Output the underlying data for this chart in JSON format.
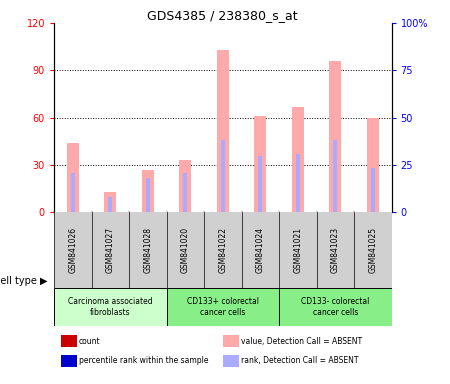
{
  "title": "GDS4385 / 238380_s_at",
  "samples": [
    "GSM841026",
    "GSM841027",
    "GSM841028",
    "GSM841020",
    "GSM841022",
    "GSM841024",
    "GSM841021",
    "GSM841023",
    "GSM841025"
  ],
  "pink_bars": [
    44,
    13,
    27,
    33,
    103,
    61,
    67,
    96,
    60
  ],
  "blue_bars": [
    25,
    10,
    22,
    25,
    46,
    36,
    37,
    46,
    28
  ],
  "ylim_left": [
    0,
    120
  ],
  "ylim_right": [
    0,
    100
  ],
  "yticks_left": [
    0,
    30,
    60,
    90,
    120
  ],
  "yticks_right": [
    0,
    25,
    50,
    75,
    100
  ],
  "ytick_labels_left": [
    "0",
    "30",
    "60",
    "90",
    "120"
  ],
  "ytick_labels_right": [
    "0",
    "25",
    "50",
    "75",
    "100%"
  ],
  "pink_color": "#ffaaaa",
  "blue_bar_color": "#aaaaff",
  "sample_area_color": "#d0d0d0",
  "plot_bg_color": "#ffffff",
  "group_configs": [
    {
      "indices": [
        0,
        1,
        2
      ],
      "color": "#ccffcc",
      "label": "Carcinoma associated\nfibroblasts"
    },
    {
      "indices": [
        3,
        4,
        5
      ],
      "color": "#88ee88",
      "label": "CD133+ colorectal\ncancer cells"
    },
    {
      "indices": [
        6,
        7,
        8
      ],
      "color": "#88ee88",
      "label": "CD133- colorectal\ncancer cells"
    }
  ],
  "legend_colors": [
    "#cc0000",
    "#0000cc",
    "#ffaaaa",
    "#aaaaff"
  ],
  "legend_labels": [
    "count",
    "percentile rank within the sample",
    "value, Detection Call = ABSENT",
    "rank, Detection Call = ABSENT"
  ],
  "cell_type_label": "cell type",
  "figsize": [
    4.5,
    3.84
  ],
  "dpi": 100
}
